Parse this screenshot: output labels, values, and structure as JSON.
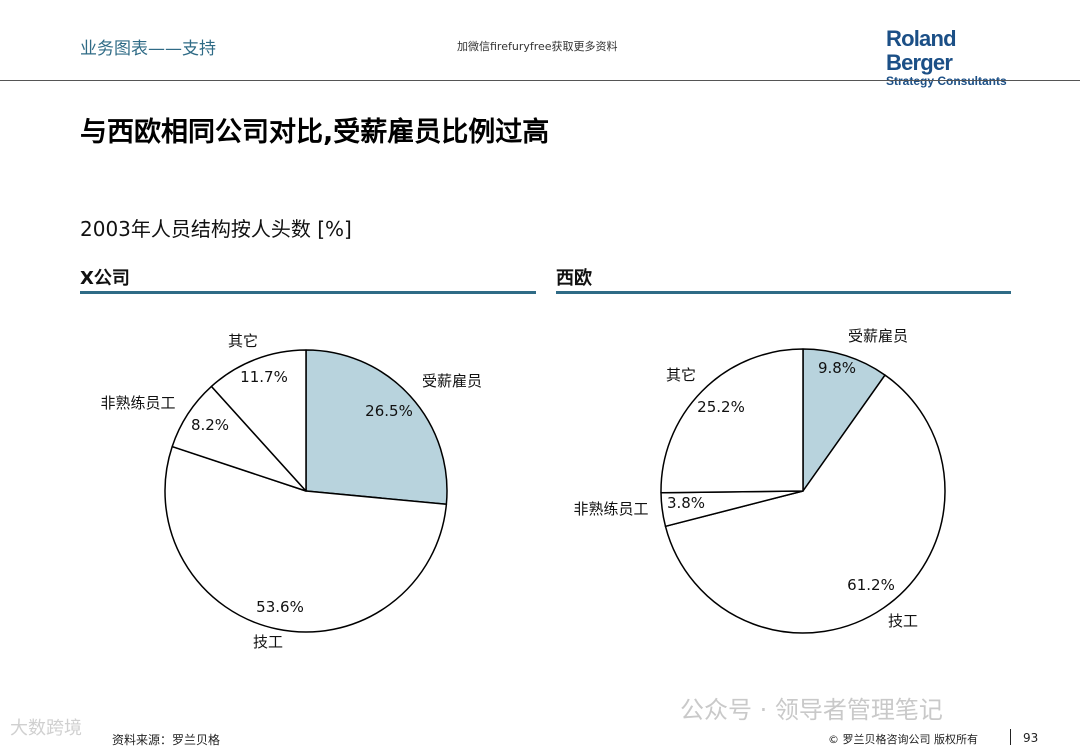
{
  "header": {
    "section": "业务图表——支持",
    "note": "加微信firefuryfree获取更多资料",
    "logo_main": "Roland Berger",
    "logo_sub": "Strategy Consultants"
  },
  "title": "与西欧相同公司对比,受薪雇员比例过高",
  "subtitle": "2003年人员结构按人头数 [%]",
  "colors": {
    "accent": "#2f6b86",
    "highlight_slice": "#b8d3dd",
    "slice": "#ffffff",
    "outline": "#000000"
  },
  "chart_data": [
    {
      "type": "pie",
      "title": "X公司",
      "start_angle_deg": 0,
      "direction": "clockwise",
      "slices": [
        {
          "label": "受薪雇员",
          "value": 26.5,
          "value_label": "26.5%",
          "highlight": true
        },
        {
          "label": "技工",
          "value": 53.6,
          "value_label": "53.6%",
          "highlight": false
        },
        {
          "label": "非熟练员工",
          "value": 8.2,
          "value_label": "8.2%",
          "highlight": false
        },
        {
          "label": "其它",
          "value": 11.7,
          "value_label": "11.7%",
          "highlight": false
        }
      ]
    },
    {
      "type": "pie",
      "title": "西欧",
      "start_angle_deg": 0,
      "direction": "clockwise",
      "slices": [
        {
          "label": "受薪雇员",
          "value": 9.8,
          "value_label": "9.8%",
          "highlight": true
        },
        {
          "label": "技工",
          "value": 61.2,
          "value_label": "61.2%",
          "highlight": false
        },
        {
          "label": "非熟练员工",
          "value": 3.8,
          "value_label": "3.8%",
          "highlight": false
        },
        {
          "label": "其它",
          "value": 25.2,
          "value_label": "25.2%",
          "highlight": false
        }
      ]
    }
  ],
  "watermark": "公众号 · 领导者管理笔记",
  "watermark_left": "大数跨境",
  "footer": {
    "source": "资料来源：罗兰贝格",
    "copyright": "© 罗兰贝格咨询公司 版权所有",
    "page": "93"
  }
}
